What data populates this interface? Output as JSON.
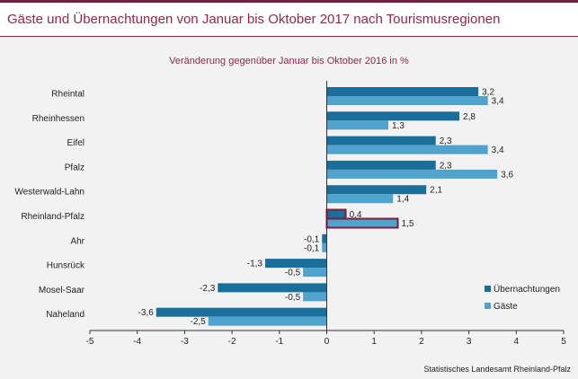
{
  "title": "Gäste und Übernachtungen von Januar bis Oktober 2017 nach Tourismusregionen",
  "source": "Statistisches Landesamt Rheinland-Pfalz",
  "chart_data": {
    "type": "bar",
    "orientation": "horizontal",
    "title": "Veränderung gegenüber Januar bis Oktober 2016 in %",
    "categories": [
      "Rheintal",
      "Rheinhessen",
      "Eifel",
      "Pfalz",
      "Westerwald-Lahn",
      "Rheinland-Pfalz",
      "Ahr",
      "Hunsrück",
      "Mosel-Saar",
      "Naheland"
    ],
    "series": [
      {
        "name": "Übernachtungen",
        "values": [
          3.2,
          2.8,
          2.3,
          2.3,
          2.1,
          0.4,
          -0.1,
          -1.3,
          -2.3,
          -3.6
        ],
        "labels": [
          "3,2",
          "2,8",
          "2,3",
          "2,3",
          "2,1",
          "0,4",
          "-0,1",
          "-1,3",
          "-2,3",
          "-3,6"
        ],
        "color": "#1a6e9a"
      },
      {
        "name": "Gäste",
        "values": [
          3.4,
          1.3,
          3.4,
          3.6,
          1.4,
          1.5,
          -0.1,
          -0.5,
          -0.5,
          -2.5
        ],
        "labels": [
          "3,4",
          "1,3",
          "3,4",
          "3,6",
          "1,4",
          "1,5",
          "-0,1",
          "-0,5",
          "-0,5",
          "-2,5"
        ],
        "color": "#4fa3cc"
      }
    ],
    "highlight_category": "Rheinland-Pfalz",
    "highlight_color": "#7a1f3d",
    "xlim": [
      -5,
      5
    ],
    "xticks": [
      -5,
      -4,
      -3,
      -2,
      -1,
      0,
      1,
      2,
      3,
      4,
      5
    ],
    "grid": false,
    "legend_position": "bottom-right"
  }
}
